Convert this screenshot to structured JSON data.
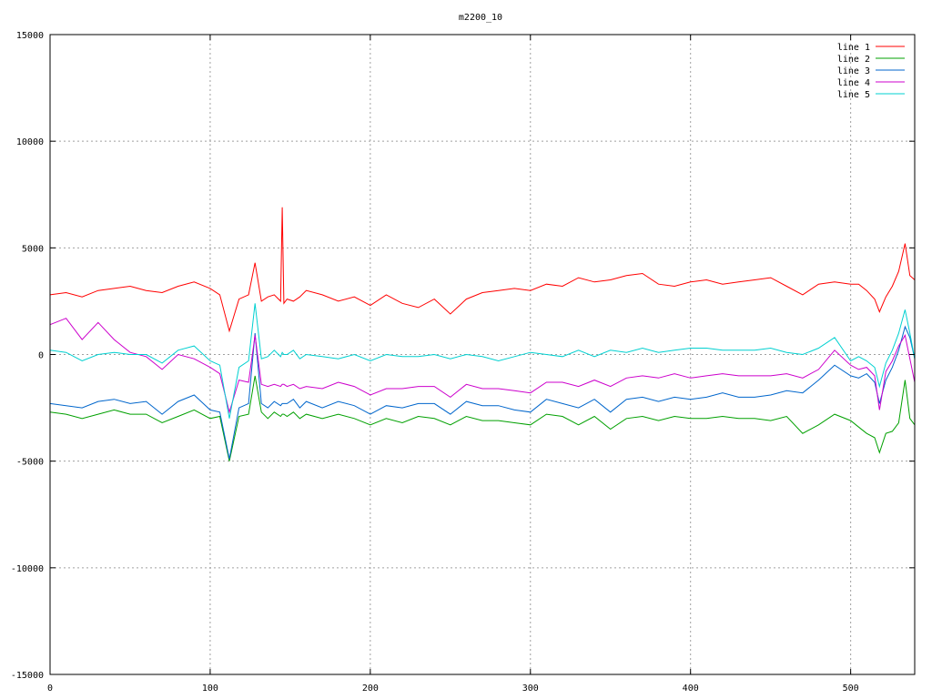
{
  "chart_data": {
    "type": "line",
    "title": "m2200_10",
    "xlabel": "",
    "ylabel": "",
    "xlim": [
      0,
      540
    ],
    "ylim": [
      -15000,
      15000
    ],
    "grid": true,
    "legend_position": "top-right",
    "x_ticks": [
      0,
      100,
      200,
      300,
      400,
      500
    ],
    "y_ticks": [
      15000,
      10000,
      5000,
      0,
      -5000,
      -10000,
      -15000
    ],
    "x": [
      0,
      10,
      20,
      30,
      40,
      50,
      60,
      70,
      80,
      90,
      100,
      106,
      112,
      118,
      124,
      128,
      132,
      136,
      140,
      144,
      145,
      146,
      148,
      152,
      156,
      160,
      170,
      180,
      190,
      200,
      210,
      220,
      230,
      240,
      250,
      260,
      270,
      280,
      290,
      300,
      310,
      320,
      330,
      340,
      350,
      360,
      370,
      380,
      390,
      400,
      410,
      420,
      430,
      440,
      450,
      460,
      470,
      480,
      490,
      500,
      505,
      510,
      515,
      518,
      522,
      526,
      530,
      534,
      537,
      540
    ],
    "series": [
      {
        "name": "line 1",
        "color": "#ff0000",
        "values": [
          2800,
          2900,
          2700,
          3000,
          3100,
          3200,
          3000,
          2900,
          3200,
          3400,
          3100,
          2800,
          1100,
          2600,
          2800,
          4300,
          2500,
          2700,
          2800,
          2500,
          6900,
          2400,
          2600,
          2500,
          2700,
          3000,
          2800,
          2500,
          2700,
          2300,
          2800,
          2400,
          2200,
          2600,
          1900,
          2600,
          2900,
          3000,
          3100,
          3000,
          3300,
          3200,
          3600,
          3400,
          3500,
          3700,
          3800,
          3300,
          3200,
          3400,
          3500,
          3300,
          3400,
          3500,
          3600,
          3200,
          2800,
          3300,
          3400,
          3300,
          3300,
          3000,
          2600,
          2000,
          2700,
          3200,
          3900,
          5200,
          3700,
          3500
        ]
      },
      {
        "name": "line 2",
        "color": "#00a000",
        "values": [
          -2700,
          -2800,
          -3000,
          -2800,
          -2600,
          -2800,
          -2800,
          -3200,
          -2900,
          -2600,
          -3000,
          -2900,
          -5000,
          -2900,
          -2800,
          -1000,
          -2700,
          -3000,
          -2700,
          -2900,
          -2800,
          -2800,
          -2900,
          -2700,
          -3000,
          -2800,
          -3000,
          -2800,
          -3000,
          -3300,
          -3000,
          -3200,
          -2900,
          -3000,
          -3300,
          -2900,
          -3100,
          -3100,
          -3200,
          -3300,
          -2800,
          -2900,
          -3300,
          -2900,
          -3500,
          -3000,
          -2900,
          -3100,
          -2900,
          -3000,
          -3000,
          -2900,
          -3000,
          -3000,
          -3100,
          -2900,
          -3700,
          -3300,
          -2800,
          -3100,
          -3400,
          -3700,
          -3900,
          -4600,
          -3700,
          -3600,
          -3200,
          -1200,
          -3000,
          -3300
        ]
      },
      {
        "name": "line 3",
        "color": "#0066cc",
        "values": [
          -2300,
          -2400,
          -2500,
          -2200,
          -2100,
          -2300,
          -2200,
          -2800,
          -2200,
          -1900,
          -2600,
          -2700,
          -4900,
          -2500,
          -2300,
          1000,
          -2300,
          -2500,
          -2200,
          -2400,
          -2300,
          -2300,
          -2300,
          -2100,
          -2500,
          -2200,
          -2500,
          -2200,
          -2400,
          -2800,
          -2400,
          -2500,
          -2300,
          -2300,
          -2800,
          -2200,
          -2400,
          -2400,
          -2600,
          -2700,
          -2100,
          -2300,
          -2500,
          -2100,
          -2700,
          -2100,
          -2000,
          -2200,
          -2000,
          -2100,
          -2000,
          -1800,
          -2000,
          -2000,
          -1900,
          -1700,
          -1800,
          -1200,
          -500,
          -1000,
          -1100,
          -900,
          -1300,
          -2300,
          -1200,
          -600,
          200,
          1300,
          800,
          -200
        ]
      },
      {
        "name": "line 4",
        "color": "#cc00cc",
        "values": [
          1400,
          1700,
          700,
          1500,
          700,
          100,
          -100,
          -700,
          0,
          -200,
          -600,
          -900,
          -2700,
          -1200,
          -1300,
          900,
          -1400,
          -1500,
          -1400,
          -1500,
          -1400,
          -1400,
          -1500,
          -1400,
          -1600,
          -1500,
          -1600,
          -1300,
          -1500,
          -1900,
          -1600,
          -1600,
          -1500,
          -1500,
          -2000,
          -1400,
          -1600,
          -1600,
          -1700,
          -1800,
          -1300,
          -1300,
          -1500,
          -1200,
          -1500,
          -1100,
          -1000,
          -1100,
          -900,
          -1100,
          -1000,
          -900,
          -1000,
          -1000,
          -1000,
          -900,
          -1100,
          -700,
          200,
          -500,
          -700,
          -600,
          -1000,
          -2600,
          -800,
          -300,
          400,
          900,
          -200,
          -1300
        ]
      },
      {
        "name": "line 5",
        "color": "#00d0d0",
        "values": [
          200,
          100,
          -300,
          0,
          100,
          0,
          0,
          -400,
          200,
          400,
          -300,
          -500,
          -3000,
          -600,
          -300,
          2400,
          -200,
          -100,
          200,
          -100,
          100,
          0,
          0,
          200,
          -200,
          0,
          -100,
          -200,
          0,
          -300,
          0,
          -100,
          -100,
          0,
          -200,
          0,
          -100,
          -300,
          -100,
          100,
          0,
          -100,
          200,
          -100,
          200,
          100,
          300,
          100,
          200,
          300,
          300,
          200,
          200,
          200,
          300,
          100,
          0,
          300,
          800,
          -300,
          -100,
          -300,
          -600,
          -1500,
          -400,
          200,
          1000,
          2100,
          1000,
          -200
        ]
      }
    ]
  }
}
